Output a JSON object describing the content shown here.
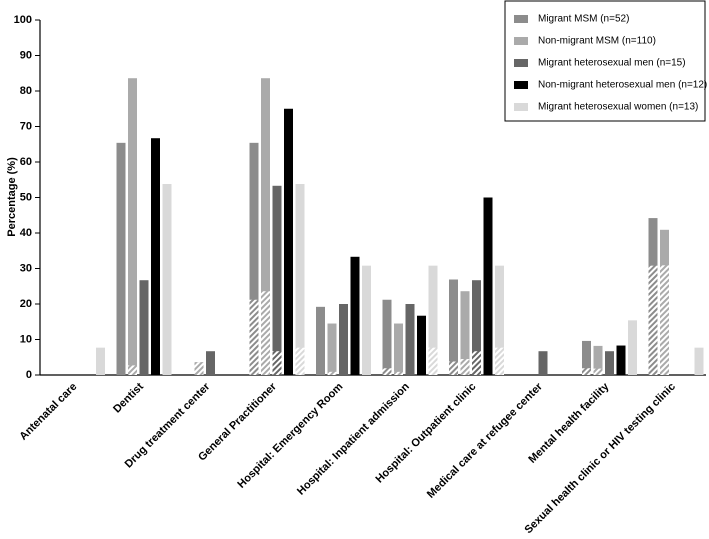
{
  "chart_data": {
    "type": "bar",
    "y_label": "Percentage (%)",
    "categories": [
      "Antenatal care",
      "Dentist",
      "Drug treatment center",
      "General Practitioner",
      "Hospital: Emergency Room",
      "Hospital: Inpatient admission",
      "Hospital: Outpatient clinic",
      "Medical care at refugee center",
      "Mental health facility",
      "Sexual health clinic or HIV testing clinic"
    ],
    "series": [
      {
        "name": "Migrant MSM (n=52)",
        "color": "#8c8c8c",
        "values": [
          0,
          65.4,
          0,
          65.4,
          19.2,
          21.2,
          26.9,
          0,
          9.6,
          44.2
        ],
        "hatched_values": [
          0,
          0,
          0,
          21.2,
          0,
          1.9,
          3.8,
          0,
          1.9,
          30.8
        ]
      },
      {
        "name": "Non-migrant MSM (n=110)",
        "color": "#aaaaaa",
        "values": [
          0,
          83.6,
          3.6,
          83.6,
          14.5,
          14.5,
          23.6,
          0,
          8.2,
          40.9
        ],
        "hatched_values": [
          0,
          2.7,
          3.6,
          23.6,
          0.9,
          0.9,
          4.5,
          0,
          1.8,
          30.9
        ]
      },
      {
        "name": "Migrant heterosexual men (n=15)",
        "color": "#666666",
        "values": [
          0,
          26.7,
          6.7,
          53.3,
          20,
          20,
          26.7,
          6.7,
          6.7,
          0
        ],
        "hatched_values": [
          0,
          0,
          0,
          6.7,
          0,
          0,
          6.7,
          0,
          0,
          0
        ]
      },
      {
        "name": "Non-migrant heterosexual men (n=12)",
        "color": "#000000",
        "values": [
          0,
          66.7,
          0,
          75,
          33.3,
          16.7,
          50,
          0,
          8.3,
          0
        ],
        "hatched_values": [
          0,
          0,
          0,
          0,
          0,
          0,
          0,
          0,
          0,
          0
        ]
      },
      {
        "name": "Migrant heterosexual women (n=13)",
        "color": "#d9d9d9",
        "values": [
          7.7,
          53.8,
          0,
          53.8,
          30.8,
          30.8,
          30.8,
          0,
          15.4,
          7.7
        ],
        "hatched_values": [
          0,
          0,
          0,
          7.7,
          0,
          7.7,
          7.7,
          0,
          0,
          0
        ]
      }
    ],
    "ylim": [
      0,
      100
    ],
    "yticks": [
      0,
      10,
      20,
      30,
      40,
      50,
      60,
      70,
      80,
      90,
      100
    ],
    "grid": false,
    "legend": "top-right"
  }
}
